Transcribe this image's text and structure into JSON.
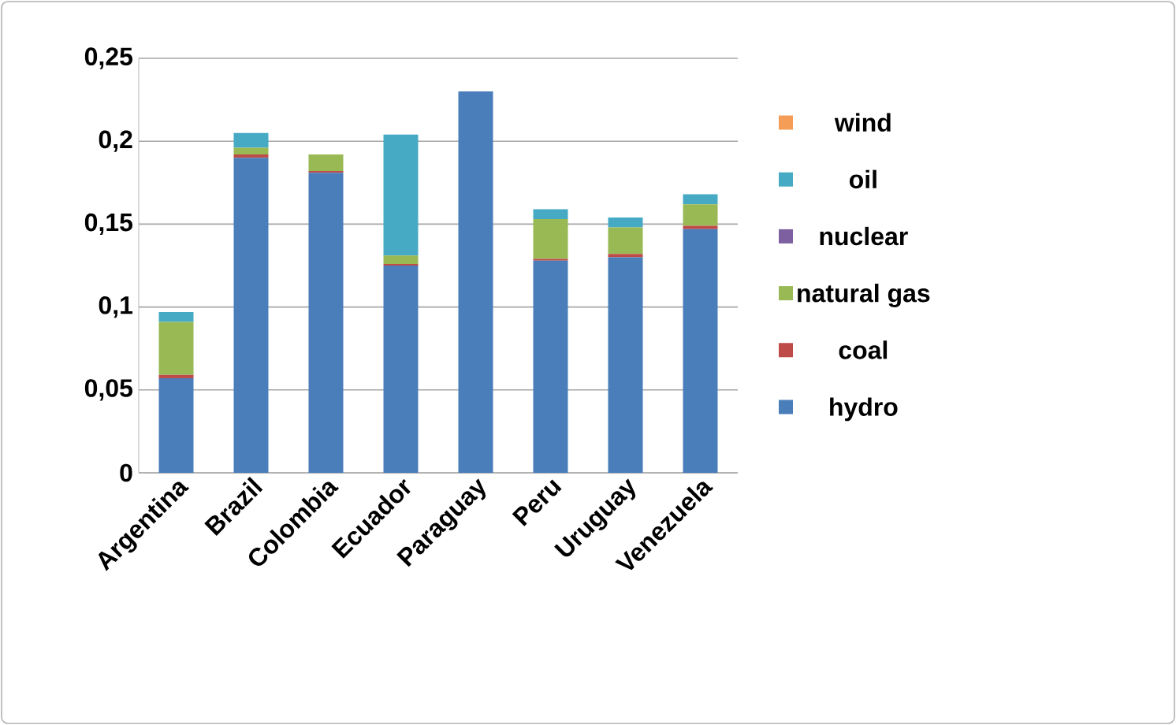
{
  "chart_data": {
    "type": "bar",
    "stacked": true,
    "categories": [
      "Argentina",
      "Brazil",
      "Colombia",
      "Ecuador",
      "Paraguay",
      "Peru",
      "Uruguay",
      "Venezuela"
    ],
    "series": [
      {
        "name": "hydro",
        "color": "#4a7ebb",
        "values": [
          0.057,
          0.19,
          0.181,
          0.125,
          0.23,
          0.128,
          0.13,
          0.147
        ]
      },
      {
        "name": "coal",
        "color": "#be4b48",
        "values": [
          0.002,
          0.002,
          0.001,
          0.001,
          0,
          0.001,
          0.002,
          0.002
        ]
      },
      {
        "name": "natural gas",
        "color": "#98b954",
        "values": [
          0.032,
          0.004,
          0.01,
          0.005,
          0,
          0.024,
          0.016,
          0.013
        ]
      },
      {
        "name": "nuclear",
        "color": "#7d60a0",
        "values": [
          0,
          0,
          0,
          0,
          0,
          0,
          0,
          0
        ]
      },
      {
        "name": "oil",
        "color": "#46aac5",
        "values": [
          0.006,
          0.009,
          0,
          0.073,
          0,
          0.006,
          0.006,
          0.006
        ]
      },
      {
        "name": "wind",
        "color": "#f59d56",
        "values": [
          0,
          0,
          0,
          0,
          0,
          0,
          0,
          0
        ]
      }
    ],
    "ylim": [
      0,
      0.25
    ],
    "yticks": [
      {
        "value": 0,
        "label": "0"
      },
      {
        "value": 0.05,
        "label": "0,05"
      },
      {
        "value": 0.1,
        "label": "0,1"
      },
      {
        "value": 0.15,
        "label": "0,15"
      },
      {
        "value": 0.2,
        "label": "0,2"
      },
      {
        "value": 0.25,
        "label": "0,25"
      }
    ],
    "grid": "y",
    "legend": "right"
  }
}
